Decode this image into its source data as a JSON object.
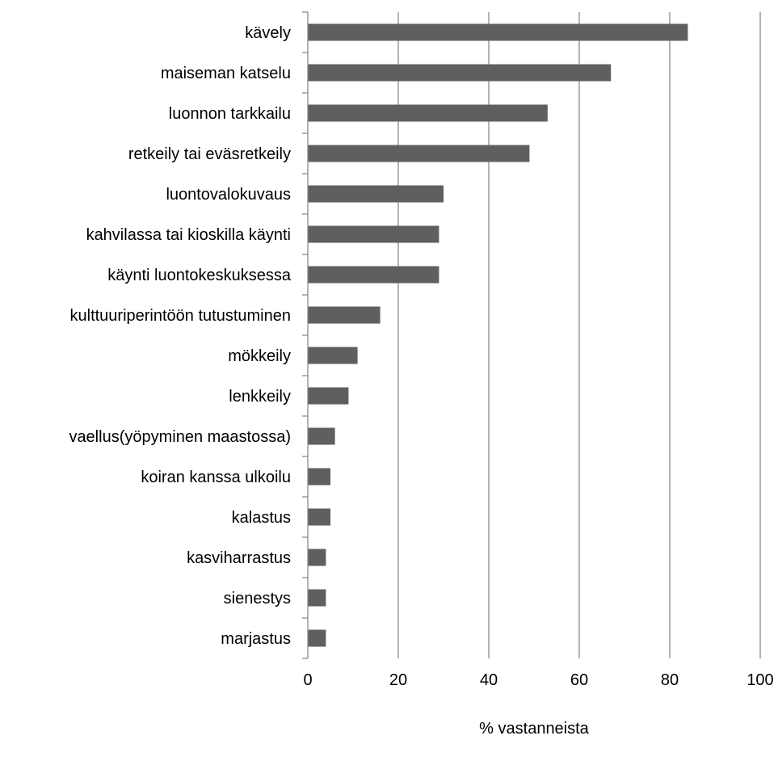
{
  "chart_data": {
    "type": "bar",
    "orientation": "horizontal",
    "categories": [
      "kävely",
      "maiseman katselu",
      "luonnon tarkkailu",
      "retkeily tai eväsretkeily",
      "luontovalokuvaus",
      "kahvilassa tai kioskilla käynti",
      "käynti luontokeskuksessa",
      "kulttuuriperintöön tutustuminen",
      "mökkeily",
      "lenkkeily",
      "vaellus(yöpyminen maastossa)",
      "koiran kanssa ulkoilu",
      "kalastus",
      "kasviharrastus",
      "sienestys",
      "marjastus"
    ],
    "values": [
      84,
      67,
      53,
      49,
      30,
      29,
      29,
      16,
      11,
      9,
      6,
      5,
      5,
      4,
      4,
      4
    ],
    "title": "",
    "xlabel": "% vastanneista",
    "ylabel": "",
    "xlim": [
      0,
      100
    ],
    "x_ticks": [
      0,
      20,
      40,
      60,
      80,
      100
    ],
    "grid": "vertical major gridlines on",
    "legend": "none",
    "bar_color": "#5f5f5f",
    "grid_color": "#8c8c8c"
  }
}
